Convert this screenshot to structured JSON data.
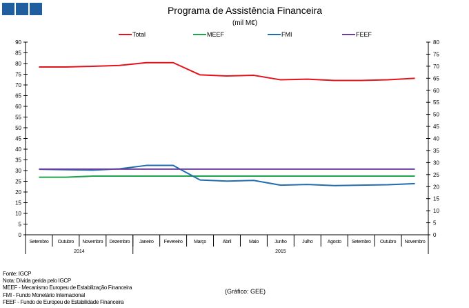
{
  "logo": "three-blue-squares",
  "chart_data": {
    "type": "line",
    "title": "Programa de Assistência Financeira",
    "subtitle": "(mil M€)",
    "categories": [
      "Setembro",
      "Outubro",
      "Novembro",
      "Dezembro",
      "Janeiro",
      "Fevereiro",
      "Março",
      "Abril",
      "Maio",
      "Junho",
      "Julho",
      "Agosto",
      "Setembro",
      "Outubro",
      "Novembro"
    ],
    "year_groups": [
      {
        "label": "2014",
        "count": 4
      },
      {
        "label": "2015",
        "count": 11
      }
    ],
    "ylim": [
      0,
      90
    ],
    "yticks": [
      0,
      5,
      10,
      15,
      20,
      25,
      30,
      35,
      40,
      45,
      50,
      55,
      60,
      65,
      70,
      75,
      80,
      85,
      90
    ],
    "y2lim": [
      0,
      80
    ],
    "y2ticks": [
      0,
      5,
      10,
      15,
      20,
      25,
      30,
      35,
      40,
      45,
      50,
      55,
      60,
      65,
      70,
      75,
      80
    ],
    "legend_position": "top",
    "grid": false,
    "series": [
      {
        "name": "Total",
        "color": "#e3131b",
        "values": [
          78.4,
          78.4,
          78.7,
          79.1,
          80.4,
          80.4,
          74.7,
          74.2,
          74.5,
          72.4,
          72.7,
          72.1,
          72.1,
          72.4,
          73.1
        ]
      },
      {
        "name": "MEEF",
        "color": "#1aa64a",
        "values": [
          26.9,
          26.9,
          27.4,
          27.4,
          27.4,
          27.4,
          27.4,
          27.4,
          27.4,
          27.4,
          27.4,
          27.4,
          27.4,
          27.4,
          27.4
        ]
      },
      {
        "name": "FMI",
        "color": "#1f6cb0",
        "values": [
          30.6,
          30.4,
          30.2,
          30.8,
          32.4,
          32.4,
          25.6,
          25.1,
          25.4,
          23.2,
          23.5,
          23.0,
          23.2,
          23.4,
          23.9
        ]
      },
      {
        "name": "FEEF",
        "color": "#6b3fa0",
        "values": [
          30.7,
          30.7,
          30.7,
          30.7,
          30.7,
          30.7,
          30.7,
          30.7,
          30.7,
          30.7,
          30.7,
          30.7,
          30.7,
          30.7,
          30.7
        ]
      }
    ]
  },
  "notes": [
    "Fonte: IGCP",
    "Nota: Dívida gerida pelo IGCP",
    "MEEF  - Mecanismo Europeu de Estabilização Financeira",
    "FMI  - Fundo Monetário Internacional",
    "FEEF - Fundo de Europeu de Estabilidade Financeira"
  ],
  "credit": "(Gráfico:  GEE)"
}
